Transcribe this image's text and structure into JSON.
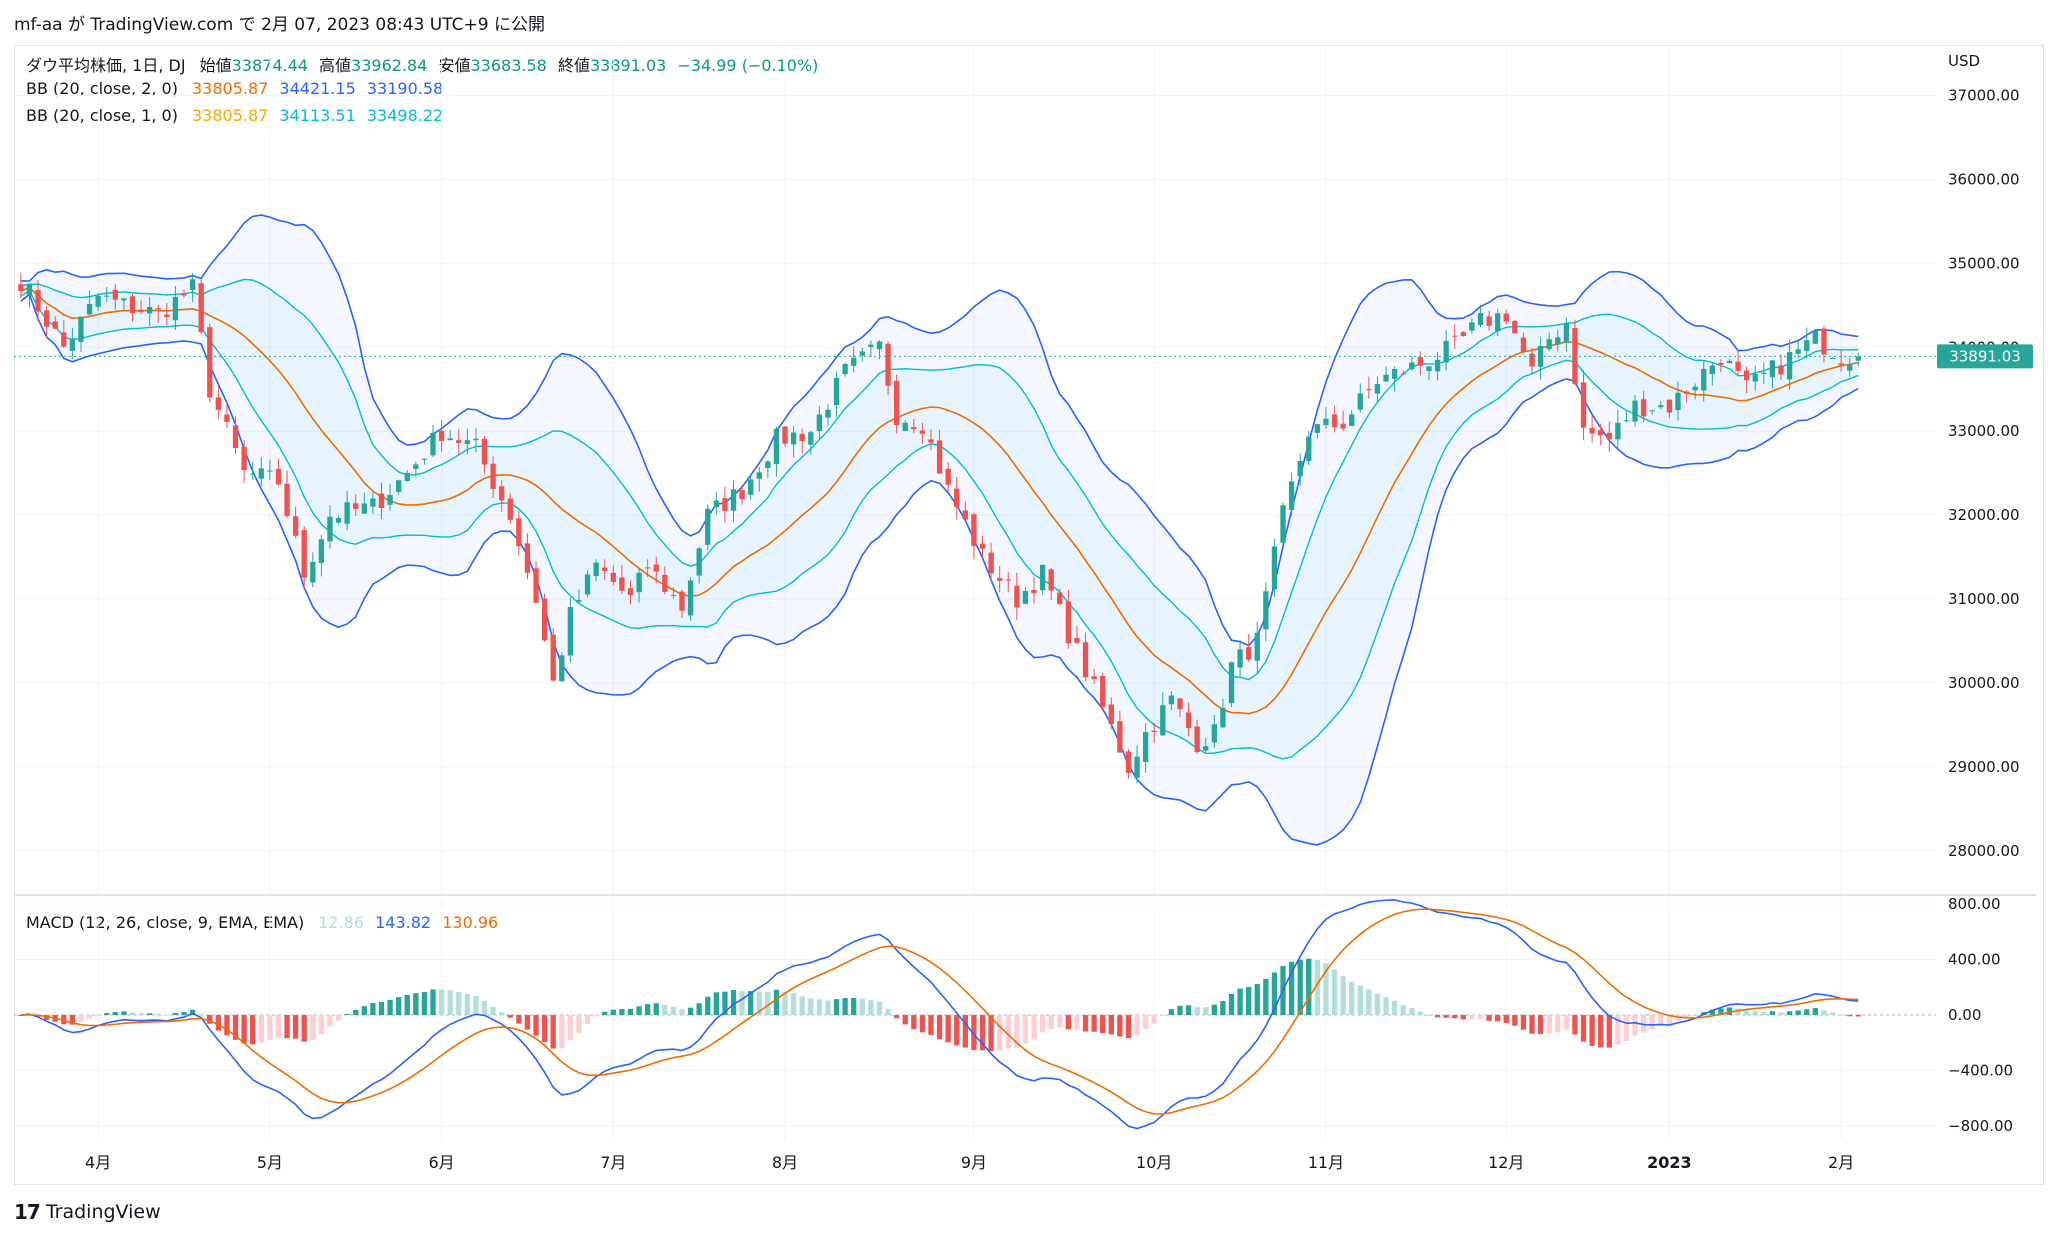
{
  "header": {
    "text": "mf-aa が TradingView.com で 2月 07, 2023 08:43 UTC+9 に公開"
  },
  "legend": {
    "symbol": "ダウ平均株価, 1日, DJ",
    "open_label": "始値",
    "open": "33874.44",
    "high_label": "高値",
    "high": "33962.84",
    "low_label": "安値",
    "low": "33683.58",
    "close_label": "終値",
    "close": "33891.03",
    "change": "−34.99 (−0.10%)",
    "bb1_label": "BB (20, close, 2, 0)",
    "bb1_basis": "33805.87",
    "bb1_upper": "34421.15",
    "bb1_lower": "33190.58",
    "bb2_label": "BB (20, close, 1, 0)",
    "bb2_basis": "33805.87",
    "bb2_upper": "34113.51",
    "bb2_lower": "33498.22",
    "macd_label": "MACD (12, 26, close, 9, EMA, EMA)",
    "macd_hist": "12.86",
    "macd_line": "143.82",
    "macd_signal": "130.96"
  },
  "currency": "USD",
  "last_price_tag": "33891.03",
  "footer": {
    "brand": "TradingView",
    "logo": "17"
  },
  "colors": {
    "up": "#26a69a",
    "down": "#ef5350",
    "bb_outer": "#2962ff",
    "bb_inner": "#00bcd4",
    "basis": "#ef6c00",
    "basis_legend": "#f7a600",
    "macd": "#2962ff",
    "signal": "#ef6c00",
    "hist_up_strong": "#26a69a",
    "hist_up_weak": "#b2dfdb",
    "hist_down_strong": "#ef5350",
    "hist_down_weak": "#ffcdd2"
  },
  "chart_data": [
    {
      "type": "candlestick",
      "title": "ダウ平均株価, 1日, DJ",
      "ylim": [
        27500,
        37600
      ],
      "y_ticks": [
        "37000.00",
        "36000.00",
        "35000.00",
        "34000.00",
        "33000.00",
        "32000.00",
        "31000.00",
        "30000.00",
        "29000.00",
        "28000.00"
      ],
      "y_tick_values": [
        37000,
        36000,
        35000,
        34000,
        33000,
        32000,
        31000,
        30000,
        29000,
        28000
      ],
      "x_tick_labels": [
        "4月",
        "5月",
        "6月",
        "7月",
        "8月",
        "9月",
        "10月",
        "11月",
        "12月",
        "2023",
        "2月"
      ],
      "x_tick_index": [
        9,
        29,
        49,
        69,
        89,
        111,
        132,
        152,
        173,
        192,
        212
      ],
      "anchors": [
        [
          0,
          34800
        ],
        [
          5,
          34000
        ],
        [
          9,
          34600
        ],
        [
          12,
          34500
        ],
        [
          16,
          34400
        ],
        [
          20,
          34700
        ],
        [
          22,
          33500
        ],
        [
          26,
          32500
        ],
        [
          30,
          32400
        ],
        [
          33,
          31300
        ],
        [
          36,
          32000
        ],
        [
          41,
          32100
        ],
        [
          45,
          32500
        ],
        [
          49,
          33000
        ],
        [
          53,
          32800
        ],
        [
          57,
          32000
        ],
        [
          60,
          31000
        ],
        [
          62,
          30000
        ],
        [
          64,
          30800
        ],
        [
          67,
          31400
        ],
        [
          71,
          31000
        ],
        [
          73,
          31400
        ],
        [
          77,
          30900
        ],
        [
          80,
          32000
        ],
        [
          84,
          32300
        ],
        [
          88,
          32900
        ],
        [
          92,
          33000
        ],
        [
          96,
          33700
        ],
        [
          100,
          34000
        ],
        [
          102,
          33200
        ],
        [
          105,
          33100
        ],
        [
          108,
          32300
        ],
        [
          112,
          31500
        ],
        [
          116,
          31000
        ],
        [
          119,
          31300
        ],
        [
          122,
          30600
        ],
        [
          126,
          29700
        ],
        [
          129,
          29000
        ],
        [
          131,
          29400
        ],
        [
          134,
          29800
        ],
        [
          137,
          29300
        ],
        [
          139,
          29400
        ],
        [
          141,
          30200
        ],
        [
          144,
          30500
        ],
        [
          147,
          32000
        ],
        [
          150,
          33000
        ],
        [
          154,
          33100
        ],
        [
          158,
          33600
        ],
        [
          163,
          33800
        ],
        [
          167,
          34000
        ],
        [
          170,
          34300
        ],
        [
          173,
          34400
        ],
        [
          176,
          33700
        ],
        [
          178,
          34100
        ],
        [
          180,
          34300
        ],
        [
          182,
          33000
        ],
        [
          185,
          32900
        ],
        [
          188,
          33300
        ],
        [
          192,
          33300
        ],
        [
          195,
          33600
        ],
        [
          198,
          33900
        ],
        [
          201,
          33500
        ],
        [
          205,
          33800
        ],
        [
          209,
          34100
        ],
        [
          212,
          33900
        ],
        [
          214,
          33891
        ]
      ],
      "current_close": 33891.03,
      "bb_outer": {
        "basis_last": 33805.87,
        "upper_last": 34421.15,
        "lower_last": 33190.58
      },
      "bb_inner": {
        "basis_last": 33805.87,
        "upper_last": 34113.51,
        "lower_last": 33498.22
      }
    },
    {
      "type": "macd",
      "title": "MACD (12, 26, close, 9, EMA, EMA)",
      "ylim": [
        -900,
        850
      ],
      "y_ticks": [
        "800.00",
        "400.00",
        "0.00",
        "−400.00",
        "−800.00"
      ],
      "y_tick_values": [
        800,
        400,
        0,
        -400,
        -800
      ],
      "last": {
        "histogram": 12.86,
        "macd": 143.82,
        "signal": 130.96
      }
    }
  ]
}
